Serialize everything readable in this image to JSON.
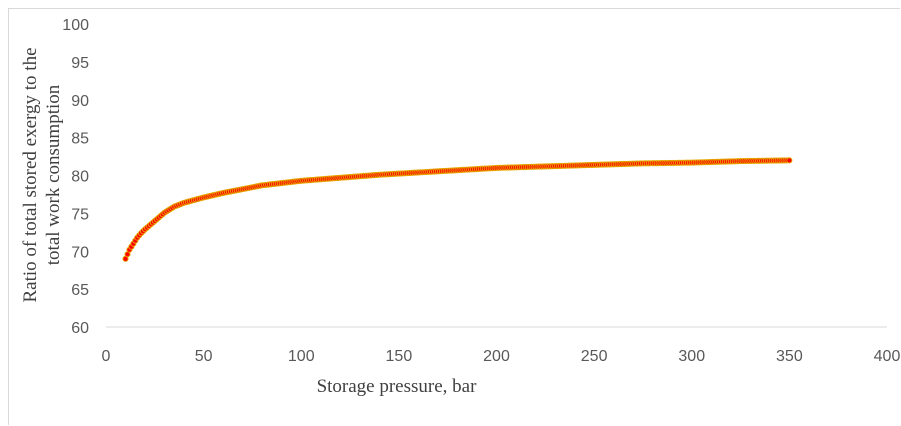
{
  "chart_data": {
    "type": "scatter",
    "title": "",
    "xlabel": "Storage pressure, bar",
    "ylabel_lines": [
      "Ratio of total stored exergy to the",
      "total work consumption"
    ],
    "xlim": [
      0,
      400
    ],
    "ylim": [
      60,
      100
    ],
    "x_ticks": [
      0,
      50,
      100,
      150,
      200,
      250,
      300,
      350,
      400
    ],
    "y_ticks": [
      60,
      65,
      70,
      75,
      80,
      85,
      90,
      95,
      100
    ],
    "x_tick_labels": [
      "0",
      "50",
      "100",
      "150",
      "200",
      "250",
      "300",
      "350",
      "400"
    ],
    "y_tick_labels": [
      "60",
      "65",
      "70",
      "75",
      "80",
      "85",
      "90",
      "95",
      "100"
    ],
    "grid": false,
    "legend": "none",
    "marker_fill": "#ff0000",
    "marker_edge": "#e5a800",
    "series": [
      {
        "x": [
          10,
          12,
          14,
          16,
          18,
          20,
          25,
          30,
          35,
          40,
          50,
          60,
          70,
          80,
          90,
          100,
          120,
          140,
          160,
          180,
          200,
          225,
          250,
          275,
          300,
          325,
          350
        ],
        "y": [
          69.0,
          70.2,
          71.0,
          71.8,
          72.4,
          72.9,
          74.0,
          75.1,
          75.9,
          76.4,
          77.1,
          77.7,
          78.2,
          78.7,
          79.0,
          79.3,
          79.7,
          80.1,
          80.4,
          80.7,
          81.0,
          81.2,
          81.4,
          81.6,
          81.7,
          81.9,
          82.0
        ]
      }
    ]
  }
}
